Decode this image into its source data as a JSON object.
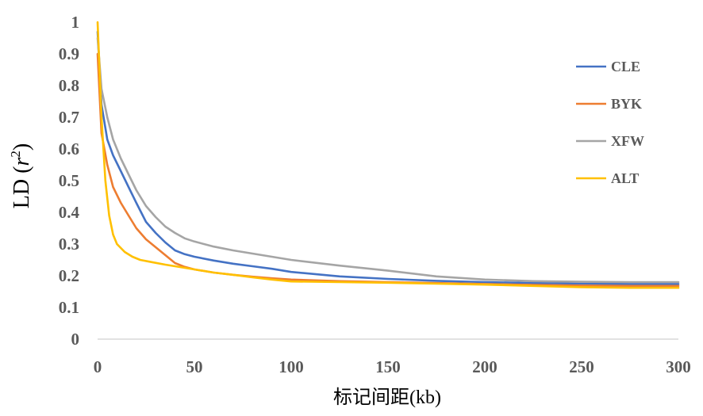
{
  "chart_data": {
    "type": "line",
    "xlabel": "标记间距(kb)",
    "ylabel_main": "LD (",
    "ylabel_var": "r",
    "ylabel_sup": "2",
    "ylabel_close": ")",
    "xlim": [
      0,
      300
    ],
    "ylim": [
      0,
      1
    ],
    "xticks": [
      0,
      50,
      100,
      150,
      200,
      250,
      300
    ],
    "yticks": [
      0,
      0.1,
      0.2,
      0.3,
      0.4,
      0.5,
      0.6,
      0.7,
      0.8,
      0.9,
      1
    ],
    "ytick_labels": [
      "0",
      "0.1",
      "0.2",
      "0.3",
      "0.4",
      "0.5",
      "0.6",
      "0.7",
      "0.8",
      "0.9",
      "1"
    ],
    "grid": false,
    "legend_position": "right",
    "series": [
      {
        "name": "CLE",
        "color": "#4472C4",
        "points": [
          [
            0,
            0.97
          ],
          [
            2,
            0.74
          ],
          [
            5,
            0.63
          ],
          [
            8,
            0.58
          ],
          [
            12,
            0.53
          ],
          [
            16,
            0.48
          ],
          [
            20,
            0.43
          ],
          [
            25,
            0.37
          ],
          [
            30,
            0.335
          ],
          [
            35,
            0.305
          ],
          [
            40,
            0.28
          ],
          [
            45,
            0.268
          ],
          [
            50,
            0.26
          ],
          [
            60,
            0.248
          ],
          [
            70,
            0.238
          ],
          [
            80,
            0.23
          ],
          [
            90,
            0.222
          ],
          [
            100,
            0.212
          ],
          [
            125,
            0.198
          ],
          [
            150,
            0.19
          ],
          [
            175,
            0.184
          ],
          [
            200,
            0.18
          ],
          [
            225,
            0.177
          ],
          [
            250,
            0.175
          ],
          [
            275,
            0.174
          ],
          [
            300,
            0.174
          ]
        ]
      },
      {
        "name": "BYK",
        "color": "#ED7D31",
        "points": [
          [
            0,
            0.9
          ],
          [
            2,
            0.65
          ],
          [
            5,
            0.55
          ],
          [
            8,
            0.48
          ],
          [
            12,
            0.43
          ],
          [
            16,
            0.39
          ],
          [
            20,
            0.35
          ],
          [
            25,
            0.315
          ],
          [
            30,
            0.29
          ],
          [
            35,
            0.265
          ],
          [
            40,
            0.24
          ],
          [
            45,
            0.228
          ],
          [
            50,
            0.22
          ],
          [
            60,
            0.21
          ],
          [
            70,
            0.203
          ],
          [
            80,
            0.197
          ],
          [
            90,
            0.192
          ],
          [
            100,
            0.188
          ],
          [
            125,
            0.183
          ],
          [
            150,
            0.18
          ],
          [
            175,
            0.177
          ],
          [
            200,
            0.174
          ],
          [
            225,
            0.171
          ],
          [
            250,
            0.169
          ],
          [
            275,
            0.168
          ],
          [
            300,
            0.168
          ]
        ]
      },
      {
        "name": "XFW",
        "color": "#A5A5A5",
        "points": [
          [
            0,
            0.95
          ],
          [
            2,
            0.79
          ],
          [
            5,
            0.7
          ],
          [
            8,
            0.63
          ],
          [
            12,
            0.57
          ],
          [
            16,
            0.52
          ],
          [
            20,
            0.47
          ],
          [
            25,
            0.42
          ],
          [
            30,
            0.385
          ],
          [
            35,
            0.355
          ],
          [
            40,
            0.335
          ],
          [
            45,
            0.318
          ],
          [
            50,
            0.308
          ],
          [
            60,
            0.292
          ],
          [
            70,
            0.28
          ],
          [
            80,
            0.27
          ],
          [
            90,
            0.26
          ],
          [
            100,
            0.25
          ],
          [
            125,
            0.232
          ],
          [
            150,
            0.216
          ],
          [
            175,
            0.198
          ],
          [
            200,
            0.188
          ],
          [
            225,
            0.183
          ],
          [
            250,
            0.181
          ],
          [
            275,
            0.18
          ],
          [
            300,
            0.18
          ]
        ]
      },
      {
        "name": "ALT",
        "color": "#FFC000",
        "points": [
          [
            0,
            1.0
          ],
          [
            2,
            0.7
          ],
          [
            4,
            0.5
          ],
          [
            6,
            0.39
          ],
          [
            8,
            0.33
          ],
          [
            10,
            0.3
          ],
          [
            14,
            0.275
          ],
          [
            18,
            0.26
          ],
          [
            22,
            0.25
          ],
          [
            28,
            0.243
          ],
          [
            35,
            0.235
          ],
          [
            40,
            0.23
          ],
          [
            45,
            0.225
          ],
          [
            50,
            0.22
          ],
          [
            60,
            0.21
          ],
          [
            70,
            0.203
          ],
          [
            80,
            0.195
          ],
          [
            90,
            0.188
          ],
          [
            100,
            0.182
          ],
          [
            125,
            0.18
          ],
          [
            150,
            0.178
          ],
          [
            175,
            0.175
          ],
          [
            200,
            0.172
          ],
          [
            225,
            0.168
          ],
          [
            250,
            0.164
          ],
          [
            275,
            0.162
          ],
          [
            300,
            0.162
          ]
        ]
      }
    ]
  }
}
